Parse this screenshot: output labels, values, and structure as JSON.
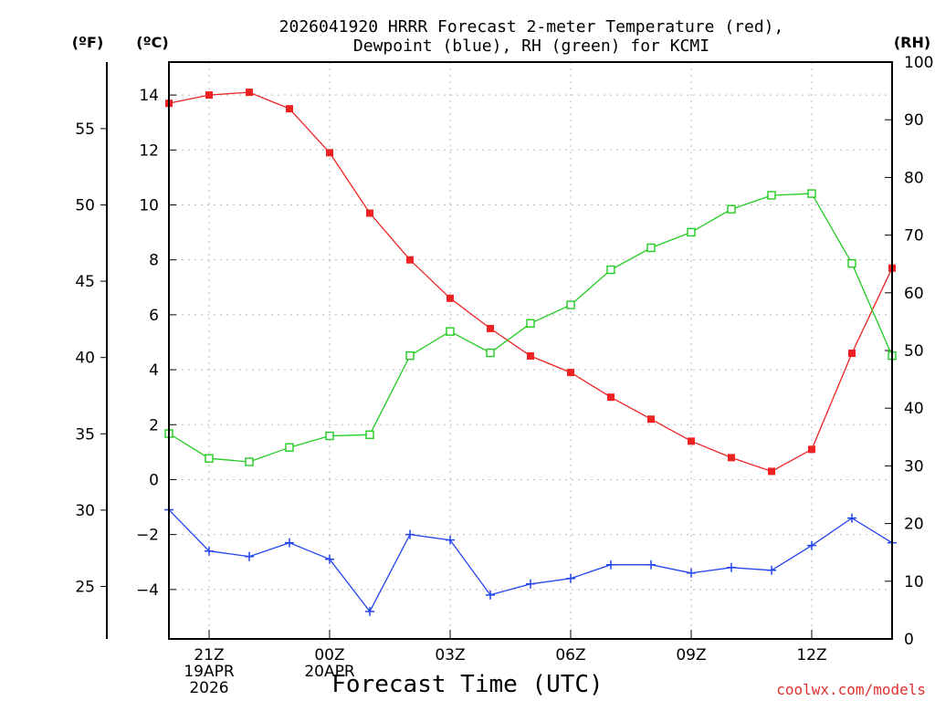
{
  "chart_data": {
    "type": "line",
    "title_line1": "2026041920 HRRR Forecast 2-meter Temperature (red),",
    "title_line2": "Dewpoint (blue), RH (green) for KCMI",
    "xlabel": "Forecast Time (UTC)",
    "credit": "coolwx.com/models",
    "unit_labels": {
      "fahrenheit": "(ºF)",
      "celsius": "(ºC)",
      "rh": "(RH)"
    },
    "x_hours": [
      0,
      1,
      2,
      3,
      4,
      5,
      6,
      7,
      8,
      9,
      10,
      11,
      12,
      13,
      14,
      15,
      16,
      17,
      18
    ],
    "x_range": [
      0,
      18
    ],
    "x_ticks": [
      {
        "hour": 1,
        "lines": [
          "21Z",
          "19APR",
          "2026"
        ]
      },
      {
        "hour": 4,
        "lines": [
          "00Z",
          "20APR"
        ]
      },
      {
        "hour": 7,
        "lines": [
          "03Z"
        ]
      },
      {
        "hour": 10,
        "lines": [
          "06Z"
        ]
      },
      {
        "hour": 13,
        "lines": [
          "09Z"
        ]
      },
      {
        "hour": 16,
        "lines": [
          "12Z"
        ]
      }
    ],
    "y_celsius": {
      "range": [
        -5.8,
        15.2
      ],
      "ticks": [
        -4,
        -2,
        0,
        2,
        4,
        6,
        8,
        10,
        12,
        14
      ]
    },
    "y_fahrenheit": {
      "ticks": [
        25,
        30,
        35,
        40,
        45,
        50,
        55
      ]
    },
    "y_rh": {
      "range": [
        0,
        100
      ],
      "ticks": [
        0,
        10,
        20,
        30,
        40,
        50,
        60,
        70,
        80,
        90,
        100
      ]
    },
    "series": [
      {
        "name": "2-meter Temperature",
        "units": "C",
        "color": "#ee2222",
        "marker": "filled-square",
        "values": [
          13.7,
          14.0,
          14.1,
          13.5,
          11.9,
          9.7,
          8.0,
          6.6,
          5.5,
          4.5,
          3.9,
          3.0,
          2.2,
          1.4,
          0.8,
          0.3,
          1.1,
          4.6,
          7.7
        ]
      },
      {
        "name": "Dewpoint",
        "units": "C",
        "color": "#2244ee",
        "marker": "plus",
        "values": [
          -1.1,
          -2.6,
          -2.8,
          -2.3,
          -2.9,
          -4.8,
          -2.0,
          -2.2,
          -4.2,
          -3.8,
          -3.6,
          -3.1,
          -3.1,
          -3.4,
          -3.2,
          -3.3,
          -2.4,
          -1.4,
          -2.3
        ]
      },
      {
        "name": "Relative Humidity",
        "units": "%",
        "color": "#22cc22",
        "marker": "open-square",
        "values": [
          35.6,
          31.3,
          30.7,
          33.2,
          35.2,
          35.4,
          49.1,
          53.3,
          49.6,
          54.7,
          57.9,
          64.0,
          67.8,
          70.5,
          74.5,
          76.9,
          77.2,
          65.1,
          49.1
        ]
      }
    ]
  }
}
